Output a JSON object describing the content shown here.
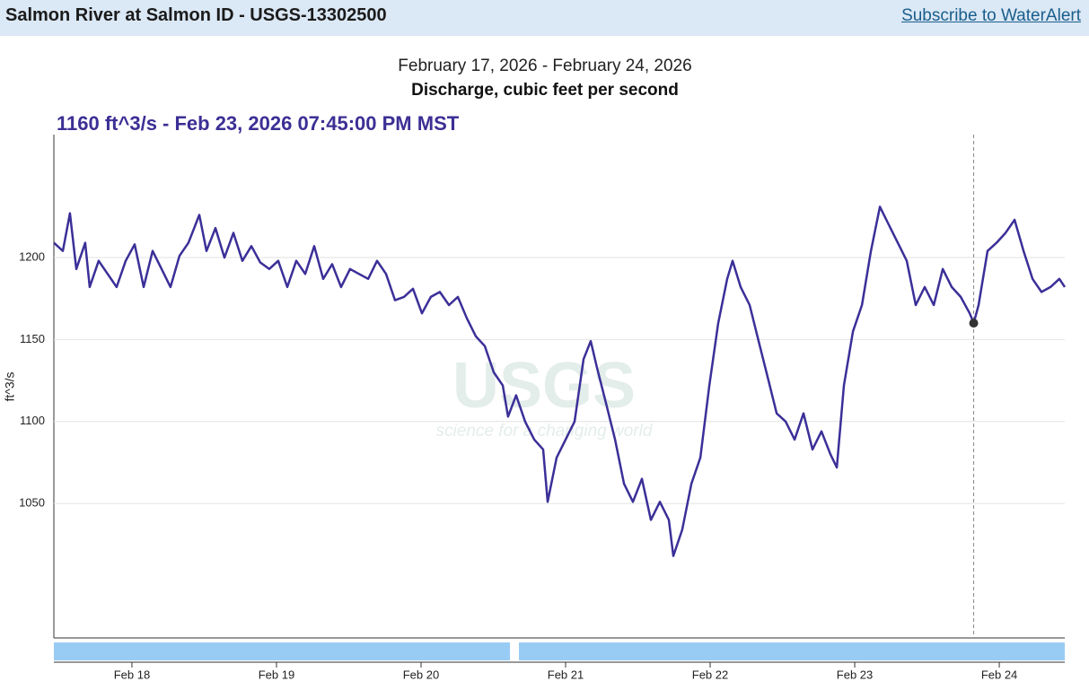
{
  "header": {
    "title": "Salmon River at Salmon ID - USGS-13302500",
    "link": "Subscribe to WaterAlert"
  },
  "watermark": {
    "logo": "USGS",
    "tagline": "science for a changing world"
  },
  "chart_data": {
    "type": "line",
    "subtitle": "February 17, 2026 - February 24, 2026",
    "title": "Discharge, cubic feet per second",
    "y_label": "ft^3/s",
    "highlight": {
      "x": 23.823,
      "value": 1160,
      "label": "1160 ft^3/s - Feb 23, 2026 07:45:00 PM MST"
    },
    "color": "#3b2f98",
    "x": [
      17.46,
      17.522,
      17.571,
      17.615,
      17.677,
      17.708,
      17.77,
      17.832,
      17.894,
      17.957,
      18.019,
      18.081,
      18.143,
      18.205,
      18.267,
      18.329,
      18.391,
      18.466,
      18.516,
      18.578,
      18.64,
      18.702,
      18.764,
      18.826,
      18.888,
      18.95,
      19.012,
      19.075,
      19.137,
      19.199,
      19.261,
      19.323,
      19.385,
      19.447,
      19.509,
      19.571,
      19.634,
      19.696,
      19.758,
      19.82,
      19.882,
      19.944,
      20.006,
      20.068,
      20.13,
      20.193,
      20.255,
      20.317,
      20.379,
      20.441,
      20.503,
      20.565,
      20.602,
      20.658,
      20.72,
      20.783,
      20.845,
      20.876,
      20.938,
      21.0,
      21.062,
      21.124,
      21.174,
      21.217,
      21.28,
      21.342,
      21.404,
      21.466,
      21.528,
      21.59,
      21.652,
      21.714,
      21.745,
      21.807,
      21.87,
      21.932,
      21.994,
      22.056,
      22.118,
      22.155,
      22.211,
      22.273,
      22.335,
      22.398,
      22.46,
      22.522,
      22.584,
      22.646,
      22.708,
      22.77,
      22.832,
      22.876,
      22.925,
      22.988,
      23.05,
      23.112,
      23.174,
      23.236,
      23.298,
      23.36,
      23.422,
      23.484,
      23.547,
      23.609,
      23.671,
      23.733,
      23.795,
      23.823,
      23.857,
      23.919,
      23.981,
      24.043,
      24.106,
      24.168,
      24.23,
      24.292,
      24.354,
      24.416,
      24.453
    ],
    "values": [
      1209,
      1204,
      1227,
      1193,
      1209,
      1182,
      1198,
      1190,
      1182,
      1198,
      1208,
      1182,
      1204,
      1193,
      1182,
      1201,
      1209,
      1226,
      1204,
      1218,
      1200,
      1215,
      1198,
      1207,
      1197,
      1193,
      1198,
      1182,
      1198,
      1190,
      1207,
      1187,
      1196,
      1182,
      1193,
      1190,
      1187,
      1198,
      1190,
      1174,
      1176,
      1181,
      1166,
      1176,
      1179,
      1171,
      1176,
      1163,
      1152,
      1146,
      1130,
      1122,
      1103,
      1116,
      1100,
      1089,
      1083,
      1051,
      1078,
      1089,
      1100,
      1138,
      1149,
      1133,
      1111,
      1089,
      1062,
      1051,
      1065,
      1040,
      1051,
      1040,
      1018,
      1034,
      1062,
      1078,
      1122,
      1160,
      1187,
      1198,
      1182,
      1171,
      1149,
      1127,
      1105,
      1100,
      1089,
      1105,
      1083,
      1094,
      1080,
      1072,
      1122,
      1155,
      1171,
      1204,
      1231,
      1220,
      1209,
      1198,
      1171,
      1182,
      1171,
      1193,
      1182,
      1176,
      1166,
      1160,
      1171,
      1204,
      1209,
      1215,
      1223,
      1204,
      1187,
      1179,
      1182,
      1187,
      1182
    ],
    "xlim": [
      17.46,
      24.453
    ],
    "ylim": [
      968,
      1275
    ],
    "xticks": [
      {
        "value": 18,
        "label": "Feb 18"
      },
      {
        "value": 19,
        "label": "Feb 19"
      },
      {
        "value": 20,
        "label": "Feb 20"
      },
      {
        "value": 21,
        "label": "Feb 21"
      },
      {
        "value": 22,
        "label": "Feb 22"
      },
      {
        "value": 23,
        "label": "Feb 23"
      },
      {
        "value": 24,
        "label": "Feb 24"
      }
    ],
    "yticks": [
      1050,
      1100,
      1150,
      1200
    ],
    "grid": true
  }
}
